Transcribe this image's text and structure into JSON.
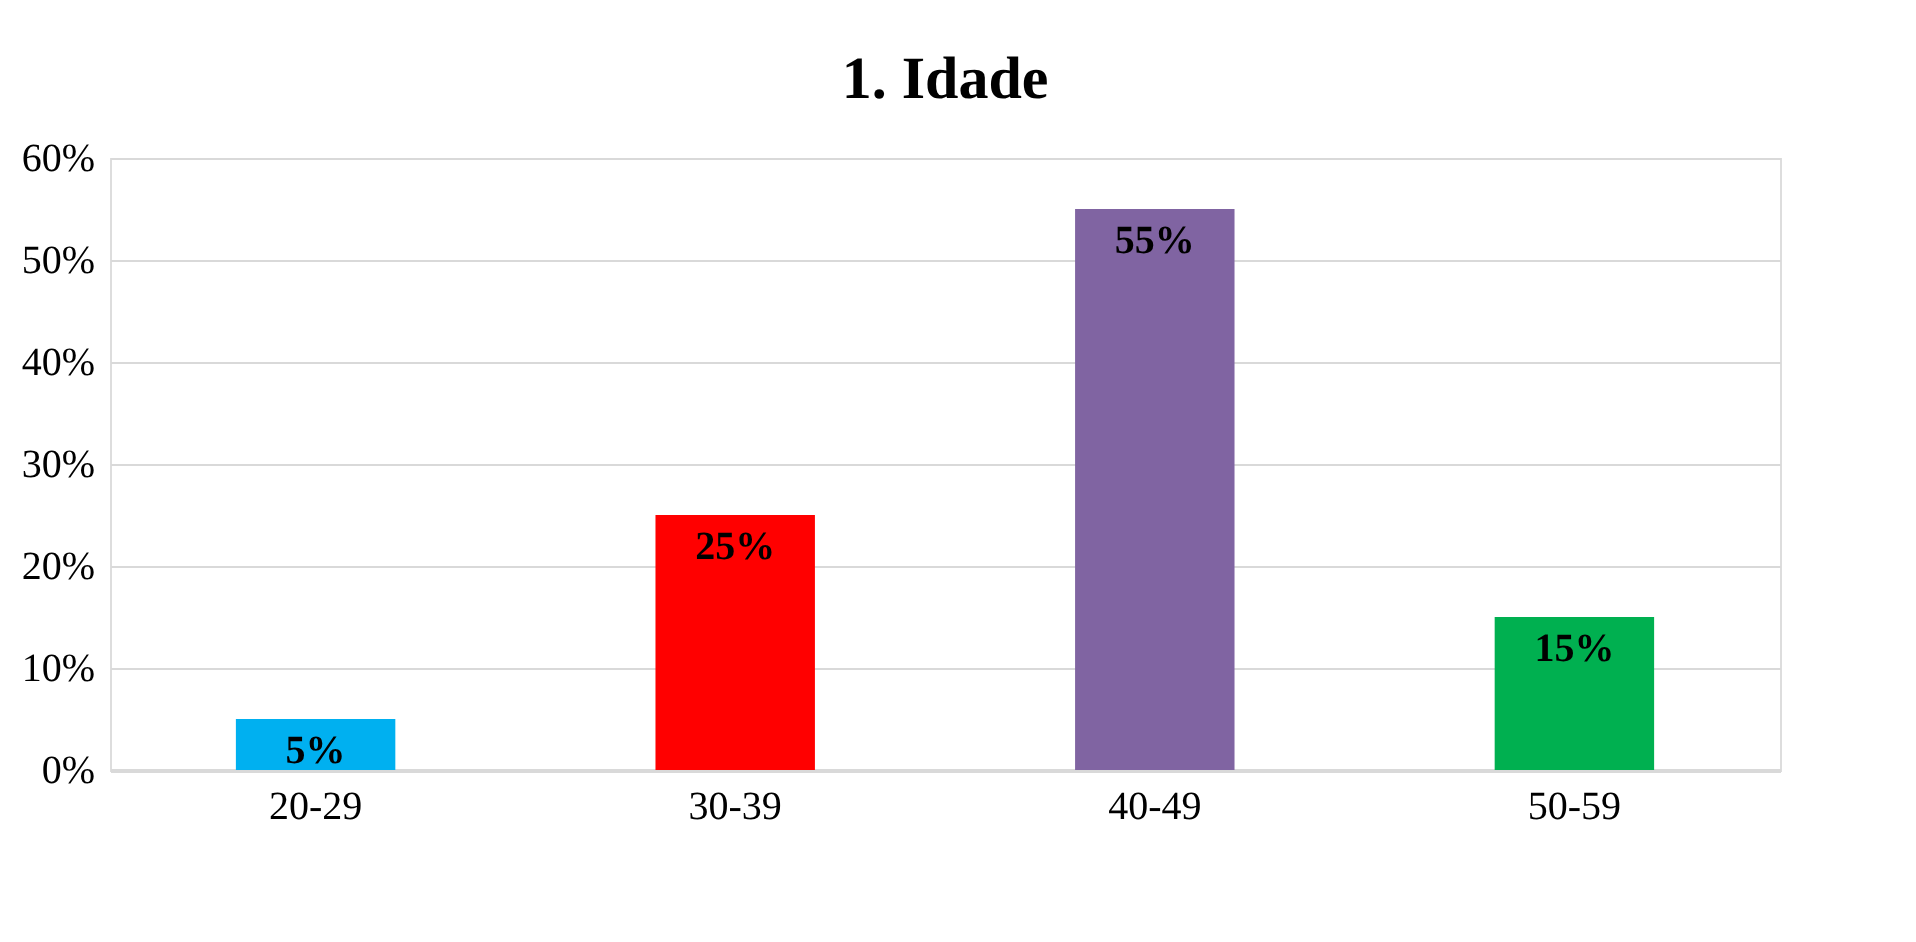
{
  "chart_data": {
    "type": "bar",
    "title": "1. Idade",
    "categories": [
      "20-29",
      "30-39",
      "40-49",
      "50-59"
    ],
    "values": [
      5,
      25,
      55,
      15
    ],
    "colors": [
      "#00b0f0",
      "#ff0000",
      "#8064a2",
      "#00b050"
    ],
    "value_labels": [
      "5%",
      "25%",
      "55%",
      "15%"
    ],
    "ylim": [
      0,
      60
    ],
    "yticks": [
      {
        "value": 0,
        "label": "0%"
      },
      {
        "value": 10,
        "label": "10%"
      },
      {
        "value": 20,
        "label": "20%"
      },
      {
        "value": 30,
        "label": "30%"
      },
      {
        "value": 40,
        "label": "40%"
      },
      {
        "value": 50,
        "label": "50%"
      },
      {
        "value": 60,
        "label": "60%"
      }
    ],
    "grid": "y"
  }
}
